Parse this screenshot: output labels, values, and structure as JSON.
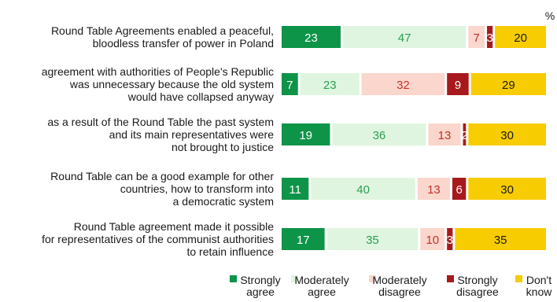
{
  "chart_data": {
    "type": "bar",
    "orientation": "horizontal",
    "stacked": true,
    "unit": "%",
    "categories": [
      [
        "Round Table Agreements enabled a peaceful,",
        "bloodless transfer of power in Poland"
      ],
      [
        "agreement with authorities of People's Republic",
        "was unnecessary because the old system",
        "would have collapsed anyway"
      ],
      [
        "as a result of the Round Table the past system",
        "and its main representatives were",
        "not brought to justice"
      ],
      [
        "Round Table can be a good example for other",
        "countries, how to transform into",
        "a democratic system"
      ],
      [
        "Round Table agreement made it possible",
        "for representatives of the communist authorities",
        "to retain influence"
      ]
    ],
    "series": [
      {
        "name": [
          "Strongly",
          "agree"
        ],
        "color": "#0d9448",
        "label_color": "#ffffff",
        "values": [
          23,
          7,
          19,
          11,
          17
        ]
      },
      {
        "name": [
          "Moderately",
          "agree"
        ],
        "color": "#dff5df",
        "label_color": "#2aa052",
        "values": [
          47,
          23,
          36,
          40,
          35
        ]
      },
      {
        "name": [
          "Moderately",
          "disagree"
        ],
        "color": "#fad6cc",
        "label_color": "#c3322a",
        "values": [
          7,
          32,
          13,
          13,
          10
        ]
      },
      {
        "name": [
          "Strongly",
          "disagree"
        ],
        "color": "#a7191c",
        "label_color": "#ffffff",
        "values": [
          3,
          9,
          2,
          6,
          3
        ]
      },
      {
        "name": [
          "Don't",
          "know"
        ],
        "color": "#f7cc00",
        "label_color": "#1a1a1a",
        "values": [
          20,
          29,
          30,
          30,
          35
        ]
      }
    ],
    "xlim": [
      0,
      100
    ],
    "legend_position": "bottom-right",
    "grid": false
  }
}
